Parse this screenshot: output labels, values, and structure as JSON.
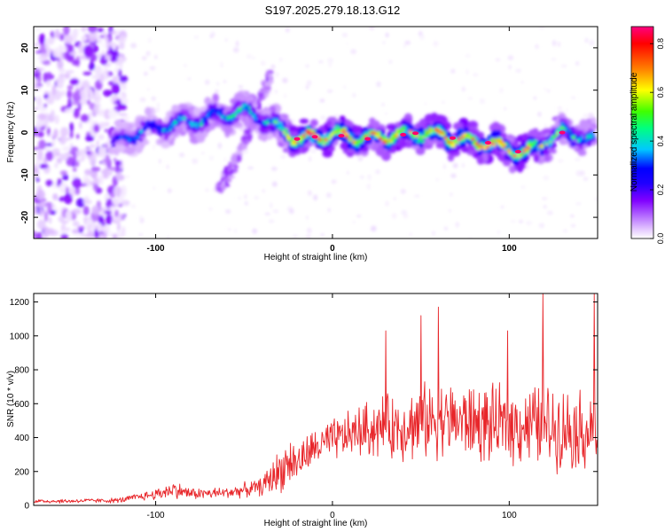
{
  "figure_title": "S197.2025.279.18.13.G12",
  "chart_data": [
    {
      "type": "heatmap",
      "title": "S197.2025.279.18.13.G12",
      "xlabel": "Height of straight line (km)",
      "ylabel": "Frequency (Hz)",
      "xlim": [
        -169,
        150
      ],
      "ylim": [
        -25,
        25
      ],
      "x_ticks": [
        -100,
        0,
        100
      ],
      "x_tick_labels": [
        "-100",
        "0",
        "100"
      ],
      "y_ticks": [
        -20,
        -10,
        0,
        10,
        20
      ],
      "y_tick_labels": [
        "-20",
        "-10",
        "0",
        "10",
        "20"
      ],
      "colorbar": {
        "label": "Normalized spectral amplitude",
        "range": [
          0.0,
          0.87
        ],
        "ticks": [
          0.0,
          0.2,
          0.4,
          0.6,
          0.8
        ],
        "tick_labels": [
          "0.0",
          "0.2",
          "0.4",
          "0.6",
          "0.8"
        ],
        "colormap": [
          "#ffffff",
          "#e6ccff",
          "#b266ff",
          "#8000ff",
          "#2000ff",
          "#0000ff",
          "#00c8ff",
          "#00ff80",
          "#40ff00",
          "#ffff00",
          "#ff8000",
          "#ff0000",
          "#ff0080"
        ]
      },
      "ridge": {
        "x": [
          -120,
          -110,
          -100,
          -90,
          -80,
          -70,
          -60,
          -50,
          -40,
          -30,
          -20,
          -10,
          0,
          10,
          20,
          30,
          40,
          50,
          60,
          70,
          80,
          90,
          100,
          110,
          120,
          130,
          140,
          150
        ],
        "y": [
          -2,
          0,
          1,
          2,
          2.5,
          3.5,
          4.5,
          5,
          3.5,
          0.5,
          -1.5,
          -1,
          -0.5,
          -1,
          -1.5,
          -1,
          -0.5,
          0,
          -0.5,
          -1.5,
          -2,
          -2.5,
          -4,
          -5,
          -2,
          0,
          -0.5,
          -2.5
        ],
        "amplitude": [
          0.35,
          0.4,
          0.4,
          0.45,
          0.45,
          0.45,
          0.5,
          0.5,
          0.45,
          0.55,
          0.8,
          0.85,
          0.75,
          0.8,
          0.7,
          0.75,
          0.75,
          0.65,
          0.75,
          0.8,
          0.75,
          0.8,
          0.7,
          0.8,
          0.6,
          0.55,
          0.5,
          0.5
        ]
      },
      "secondary_branch": {
        "x": [
          -65,
          -55,
          -45,
          -40,
          -35
        ],
        "y": [
          -14,
          -7,
          2,
          9,
          13
        ]
      }
    },
    {
      "type": "line",
      "xlabel": "Height of straight line (km)",
      "ylabel": "SNR (10 * v/v)",
      "xlim": [
        -169,
        150
      ],
      "ylim": [
        0,
        1250
      ],
      "x_ticks": [
        -100,
        0,
        100
      ],
      "x_tick_labels": [
        "-100",
        "0",
        "100"
      ],
      "y_ticks": [
        0,
        200,
        400,
        600,
        800,
        1000,
        1200
      ],
      "y_tick_labels": [
        "0",
        "200",
        "400",
        "600",
        "800",
        "1000",
        "1200"
      ],
      "color": "#e8262a",
      "series": [
        {
          "name": "SNR",
          "x": [
            -169,
            -160,
            -150,
            -140,
            -130,
            -120,
            -110,
            -100,
            -90,
            -80,
            -70,
            -60,
            -50,
            -40,
            -35,
            -30,
            -25,
            -20,
            -10,
            0,
            10,
            20,
            30,
            40,
            50,
            60,
            70,
            80,
            90,
            100,
            110,
            120,
            130,
            140,
            150
          ],
          "mean": [
            25,
            25,
            25,
            28,
            28,
            30,
            50,
            65,
            95,
            70,
            70,
            75,
            90,
            110,
            160,
            200,
            260,
            250,
            340,
            380,
            420,
            450,
            460,
            470,
            490,
            510,
            500,
            490,
            470,
            470,
            480,
            470,
            460,
            450,
            430
          ],
          "spread": [
            15,
            15,
            15,
            15,
            15,
            20,
            25,
            40,
            60,
            40,
            40,
            40,
            50,
            60,
            120,
            150,
            170,
            140,
            130,
            150,
            160,
            200,
            220,
            240,
            260,
            260,
            260,
            270,
            270,
            260,
            280,
            290,
            280,
            280,
            290
          ],
          "peaks": [
            {
              "x": 30,
              "y": 1030
            },
            {
              "x": 50,
              "y": 1120
            },
            {
              "x": 60,
              "y": 1170
            },
            {
              "x": 99,
              "y": 1030
            },
            {
              "x": 119,
              "y": 1250
            },
            {
              "x": 148,
              "y": 1250
            }
          ]
        }
      ]
    }
  ]
}
